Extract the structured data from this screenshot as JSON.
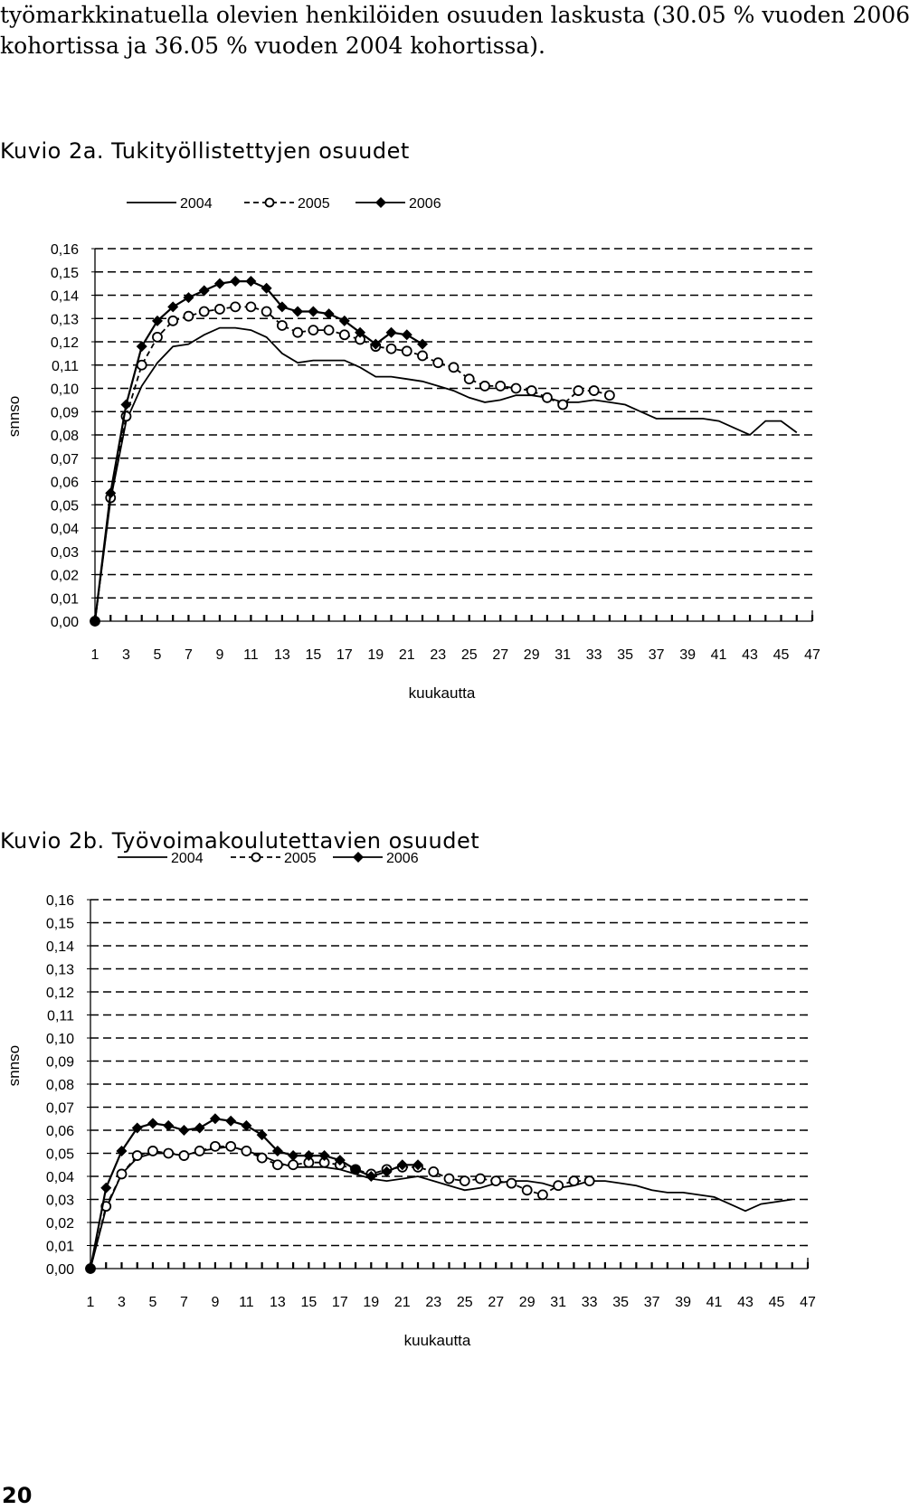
{
  "intro": {
    "line1": "työmarkkinatuella olevien henkilöiden osuuden laskusta (30.05 % vuoden 2006",
    "line2": "kohortissa ja 36.05 % vuoden 2004 kohortissa)."
  },
  "charts": [
    {
      "caption": "Kuvio 2a. Tukityöllistettyjen osuudet"
    },
    {
      "caption": "Kuvio 2b. Työvoimakoulutettavien osuudet"
    }
  ],
  "page_number": "20",
  "chart_data": [
    {
      "type": "line",
      "title": "Kuvio 2a. Tukityöllistettyjen osuudet",
      "xlabel": "kuukautta",
      "ylabel": "osuus",
      "xlim": [
        1,
        47
      ],
      "ylim": [
        0,
        0.16
      ],
      "y_tick_step": 0.01,
      "x_ticks": [
        "1",
        "3",
        "5",
        "7",
        "9",
        "11",
        "13",
        "15",
        "17",
        "19",
        "21",
        "23",
        "25",
        "27",
        "29",
        "31",
        "33",
        "35",
        "37",
        "39",
        "41",
        "43",
        "45",
        "47"
      ],
      "y_ticks": [
        "0,00",
        "0,01",
        "0,02",
        "0,03",
        "0,04",
        "0,05",
        "0,06",
        "0,07",
        "0,08",
        "0,09",
        "0,10",
        "0,11",
        "0,12",
        "0,13",
        "0,14",
        "0,15",
        "0,16"
      ],
      "grid": "horizontal dashed",
      "legend": "top",
      "series": [
        {
          "name": "2004",
          "style": "solid",
          "values": [
            0.0,
            0.052,
            0.086,
            0.101,
            0.111,
            0.118,
            0.119,
            0.123,
            0.126,
            0.126,
            0.125,
            0.122,
            0.115,
            0.111,
            0.112,
            0.112,
            0.112,
            0.109,
            0.105,
            0.105,
            0.104,
            0.103,
            0.101,
            0.099,
            0.096,
            0.094,
            0.095,
            0.097,
            0.097,
            0.096,
            0.094,
            0.094,
            0.095,
            0.094,
            0.093,
            0.09,
            0.087,
            0.087,
            0.087,
            0.087,
            0.086,
            0.083,
            0.08,
            0.086,
            0.086,
            0.081
          ]
        },
        {
          "name": "2005",
          "style": "dashed-circle",
          "values": [
            0.0,
            0.053,
            0.088,
            0.11,
            0.122,
            0.129,
            0.131,
            0.133,
            0.134,
            0.135,
            0.135,
            0.133,
            0.127,
            0.124,
            0.125,
            0.125,
            0.123,
            0.121,
            0.118,
            0.117,
            0.116,
            0.114,
            0.111,
            0.109,
            0.104,
            0.101,
            0.101,
            0.1,
            0.099,
            0.096,
            0.093,
            0.099,
            0.099,
            0.097
          ]
        },
        {
          "name": "2006",
          "style": "solid-diamond",
          "values": [
            0.0,
            0.055,
            0.093,
            0.118,
            0.129,
            0.135,
            0.139,
            0.142,
            0.145,
            0.146,
            0.146,
            0.143,
            0.135,
            0.133,
            0.133,
            0.132,
            0.129,
            0.124,
            0.119,
            0.124,
            0.123,
            0.119
          ]
        }
      ]
    },
    {
      "type": "line",
      "title": "Kuvio 2b. Työvoimakoulutettavien osuudet",
      "xlabel": "kuukautta",
      "ylabel": "osuus",
      "xlim": [
        1,
        47
      ],
      "ylim": [
        0,
        0.16
      ],
      "y_tick_step": 0.01,
      "x_ticks": [
        "1",
        "3",
        "5",
        "7",
        "9",
        "11",
        "13",
        "15",
        "17",
        "19",
        "21",
        "23",
        "25",
        "27",
        "29",
        "31",
        "33",
        "35",
        "37",
        "39",
        "41",
        "43",
        "45",
        "47"
      ],
      "y_ticks": [
        "0,00",
        "0,01",
        "0,02",
        "0,03",
        "0,04",
        "0,05",
        "0,06",
        "0,07",
        "0,08",
        "0,09",
        "0,10",
        "0,11",
        "0,12",
        "0,13",
        "0,14",
        "0,15",
        "0,16"
      ],
      "grid": "horizontal dashed",
      "legend": "top",
      "series": [
        {
          "name": "2004",
          "style": "solid",
          "values": [
            0.0,
            0.026,
            0.041,
            0.048,
            0.05,
            0.05,
            0.049,
            0.051,
            0.052,
            0.053,
            0.051,
            0.049,
            0.046,
            0.044,
            0.044,
            0.044,
            0.043,
            0.041,
            0.039,
            0.038,
            0.039,
            0.04,
            0.038,
            0.036,
            0.034,
            0.035,
            0.037,
            0.038,
            0.038,
            0.037,
            0.035,
            0.036,
            0.038,
            0.038,
            0.037,
            0.036,
            0.034,
            0.033,
            0.033,
            0.032,
            0.031,
            0.028,
            0.025,
            0.028,
            0.029,
            0.03
          ]
        },
        {
          "name": "2005",
          "style": "dashed-circle",
          "values": [
            0.0,
            0.027,
            0.041,
            0.049,
            0.051,
            0.05,
            0.049,
            0.051,
            0.053,
            0.053,
            0.051,
            0.048,
            0.045,
            0.045,
            0.046,
            0.046,
            0.045,
            0.043,
            0.041,
            0.043,
            0.044,
            0.044,
            0.042,
            0.039,
            0.038,
            0.039,
            0.038,
            0.037,
            0.034,
            0.032,
            0.036,
            0.038,
            0.038
          ]
        },
        {
          "name": "2006",
          "style": "solid-diamond",
          "values": [
            0.0,
            0.035,
            0.051,
            0.061,
            0.063,
            0.062,
            0.06,
            0.061,
            0.065,
            0.064,
            0.062,
            0.058,
            0.051,
            0.049,
            0.049,
            0.049,
            0.047,
            0.043,
            0.04,
            0.042,
            0.045,
            0.045
          ]
        }
      ]
    }
  ]
}
